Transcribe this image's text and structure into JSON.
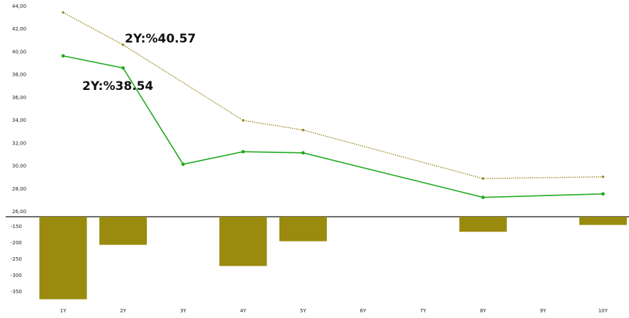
{
  "chart_data": [
    {
      "type": "line",
      "categories": [
        "1Y",
        "2Y",
        "3Y",
        "4Y",
        "5Y",
        "6Y",
        "7Y",
        "8Y",
        "9Y",
        "10Y"
      ],
      "series": [
        {
          "style": "dotted",
          "color": "#9a8a2a",
          "values": [
            43.4,
            40.57,
            null,
            33.95,
            33.1,
            null,
            null,
            28.85,
            null,
            29.0
          ]
        },
        {
          "style": "solid",
          "color": "#1faa1f",
          "values": [
            39.6,
            38.54,
            30.1,
            31.2,
            31.1,
            null,
            null,
            27.2,
            null,
            27.5
          ]
        }
      ],
      "ylim": [
        26,
        44
      ],
      "yticks": [
        "44,00",
        "42,00",
        "40,00",
        "38,00",
        "36,00",
        "34,00",
        "32,00",
        "30,00",
        "28,00",
        "26,00"
      ],
      "ytick_values": [
        44,
        42,
        40,
        38,
        36,
        34,
        32,
        30,
        28,
        26
      ],
      "annotations": [
        {
          "text": "2Y:%40.57",
          "series": 0,
          "category": "2Y"
        },
        {
          "text": "2Y:%38.54",
          "series": 1,
          "category": "2Y"
        }
      ],
      "grid": false
    },
    {
      "type": "bar",
      "categories": [
        "1Y",
        "2Y",
        "3Y",
        "4Y",
        "5Y",
        "6Y",
        "7Y",
        "8Y",
        "9Y",
        "10Y"
      ],
      "values": [
        -375,
        -208,
        null,
        -273,
        -197,
        null,
        null,
        -168,
        null,
        -147
      ],
      "color": "#9a8a0e",
      "ylim": [
        -385,
        -135
      ],
      "yticks": [
        "-150",
        "-200",
        "-250",
        "-300",
        "-350"
      ],
      "ytick_values": [
        -150,
        -200,
        -250,
        -300,
        -350
      ],
      "xticks": [
        "1Y",
        "2Y",
        "3Y",
        "4Y",
        "5Y",
        "6Y",
        "7Y",
        "8Y",
        "9Y",
        "10Y"
      ],
      "grid": false
    }
  ]
}
